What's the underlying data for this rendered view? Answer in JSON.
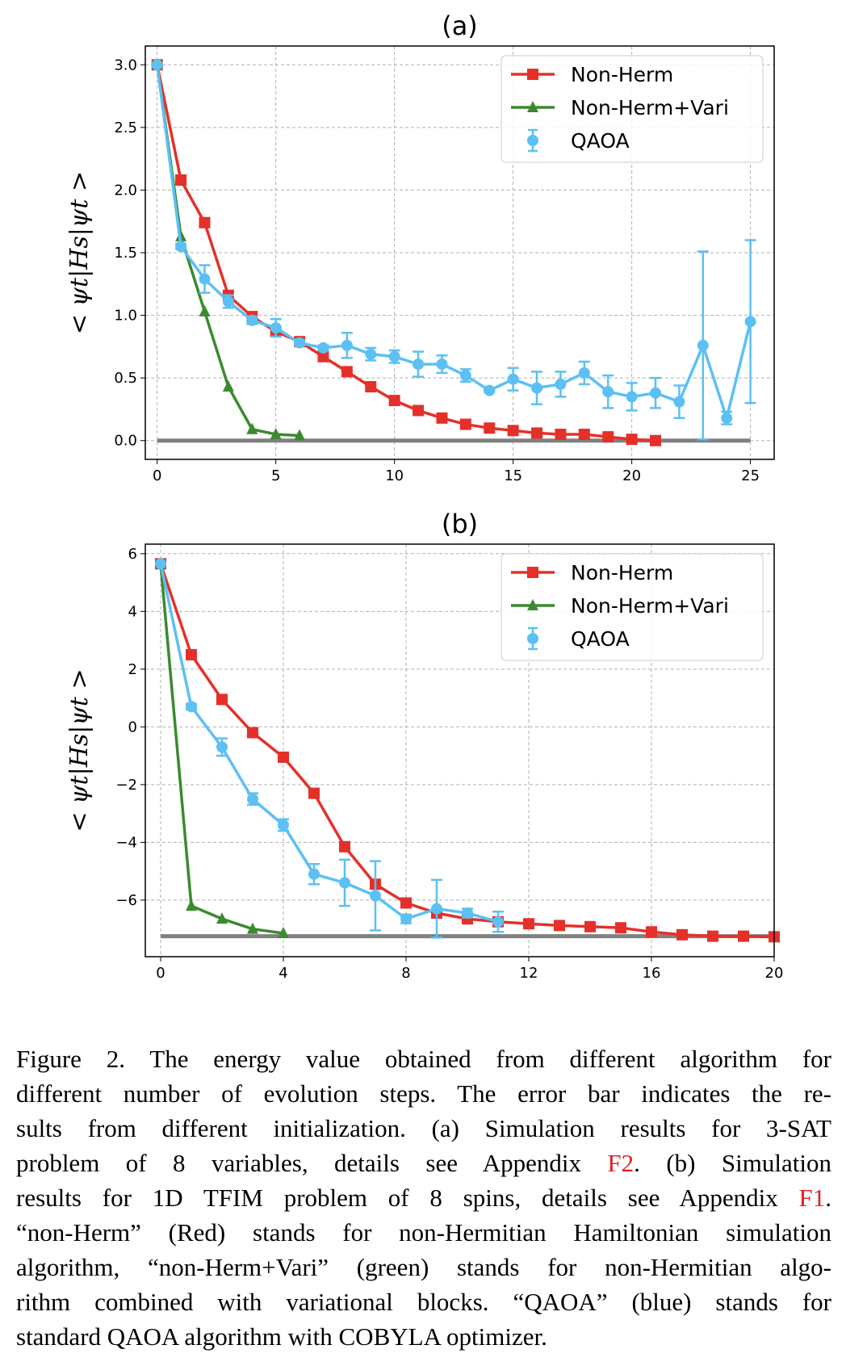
{
  "colors": {
    "non_herm": "#e5302a",
    "non_herm_vari": "#3b8a2f",
    "qaoa": "#5bc0f4",
    "ground": "#808080",
    "grid": "#b0b0b0",
    "link": "#e02020"
  },
  "chart_data": [
    {
      "type": "line",
      "title": "(a)",
      "ylabel": "< ψt|Hs|ψt >",
      "xlabel": "",
      "xlim": [
        -0.5,
        26
      ],
      "ylim": [
        -0.15,
        3.15
      ],
      "xticks": [
        0,
        5,
        10,
        15,
        20,
        25
      ],
      "yticks": [
        0.0,
        0.5,
        1.0,
        1.5,
        2.0,
        2.5,
        3.0
      ],
      "ytick_labels": [
        "0.0",
        "0.5",
        "1.0",
        "1.5",
        "2.0",
        "2.5",
        "3.0"
      ],
      "grid": true,
      "legend": "top-right",
      "series": [
        {
          "name": "Non-Herm",
          "marker": "square",
          "x": [
            0,
            1,
            2,
            3,
            4,
            5,
            6,
            7,
            8,
            9,
            10,
            11,
            12,
            13,
            14,
            15,
            16,
            17,
            18,
            19,
            20,
            21
          ],
          "y": [
            3.0,
            2.08,
            1.74,
            1.16,
            0.99,
            0.87,
            0.79,
            0.67,
            0.55,
            0.43,
            0.32,
            0.24,
            0.18,
            0.13,
            0.1,
            0.08,
            0.06,
            0.05,
            0.05,
            0.03,
            0.01,
            0.0
          ]
        },
        {
          "name": "Non-Herm+Vari",
          "marker": "triangle",
          "x": [
            0,
            1,
            2,
            3,
            4,
            5,
            6
          ],
          "y": [
            3.0,
            1.63,
            1.03,
            0.43,
            0.09,
            0.05,
            0.04
          ]
        },
        {
          "name": "QAOA",
          "marker": "circle",
          "x": [
            0,
            1,
            2,
            3,
            4,
            5,
            6,
            7,
            8,
            9,
            10,
            11,
            12,
            13,
            14,
            15,
            16,
            17,
            18,
            19,
            20,
            21,
            22,
            23,
            24,
            25
          ],
          "y": [
            3.0,
            1.55,
            1.29,
            1.11,
            0.96,
            0.9,
            0.78,
            0.74,
            0.76,
            0.69,
            0.67,
            0.61,
            0.61,
            0.52,
            0.4,
            0.49,
            0.42,
            0.45,
            0.54,
            0.39,
            0.35,
            0.38,
            0.31,
            0.76,
            0.18,
            0.95
          ],
          "yerr": [
            0,
            0.02,
            0.11,
            0.05,
            0.03,
            0.07,
            0.02,
            0.02,
            0.1,
            0.05,
            0.05,
            0.1,
            0.07,
            0.05,
            0.01,
            0.09,
            0.13,
            0.1,
            0.09,
            0.13,
            0.11,
            0.12,
            0.13,
            0.75,
            0.05,
            0.65
          ]
        }
      ],
      "reference_line": {
        "y": 0.0,
        "x": [
          0,
          25
        ]
      }
    },
    {
      "type": "line",
      "title": "(b)",
      "ylabel": "< ψt|Hs|ψt >",
      "xlabel": "",
      "xlim": [
        -0.5,
        20
      ],
      "ylim": [
        -7.96,
        6.33
      ],
      "xticks": [
        0,
        4,
        8,
        12,
        16,
        20
      ],
      "yticks": [
        -6,
        -4,
        -2,
        0,
        2,
        4,
        6
      ],
      "ytick_labels": [
        "−6",
        "−4",
        "−2",
        "0",
        "2",
        "4",
        "6"
      ],
      "grid": true,
      "legend": "top-right",
      "series": [
        {
          "name": "Non-Herm",
          "marker": "square",
          "x": [
            0,
            1,
            2,
            3,
            4,
            5,
            6,
            7,
            8,
            9,
            10,
            11,
            12,
            13,
            14,
            15,
            16,
            17,
            18,
            19,
            20
          ],
          "y": [
            5.65,
            2.5,
            0.95,
            -0.2,
            -1.05,
            -2.3,
            -4.15,
            -5.45,
            -6.1,
            -6.45,
            -6.65,
            -6.75,
            -6.82,
            -6.88,
            -6.92,
            -6.96,
            -7.1,
            -7.2,
            -7.25,
            -7.25,
            -7.27
          ]
        },
        {
          "name": "Non-Herm+Vari",
          "marker": "triangle",
          "x": [
            0,
            1,
            2,
            3,
            4
          ],
          "y": [
            5.65,
            -6.2,
            -6.65,
            -7.0,
            -7.15
          ]
        },
        {
          "name": "QAOA",
          "marker": "circle",
          "x": [
            0,
            1,
            2,
            3,
            4,
            5,
            6,
            7,
            8,
            9,
            10,
            11
          ],
          "y": [
            5.65,
            0.7,
            -0.7,
            -2.5,
            -3.4,
            -5.1,
            -5.4,
            -5.85,
            -6.65,
            -6.3,
            -6.45,
            -6.75
          ],
          "yerr": [
            0,
            0.1,
            0.3,
            0.2,
            0.2,
            0.35,
            0.8,
            1.2,
            0.15,
            1.0,
            0.15,
            0.35
          ]
        }
      ],
      "reference_line": {
        "y": -7.25,
        "x": [
          0,
          20
        ]
      }
    }
  ],
  "caption": {
    "lines": [
      [
        {
          "text": "Figure 2.  The energy value obtained from different algorithm for"
        }
      ],
      [
        {
          "text": "different number of evolution steps.  The error bar indicates the re-"
        }
      ],
      [
        {
          "text": "sults from different initialization.  (a) Simulation results for 3-SAT"
        }
      ],
      [
        {
          "text": "problem of 8 variables, details see Appendix "
        },
        {
          "text": "F2",
          "link": true
        },
        {
          "text": ".  (b) Simulation"
        }
      ],
      [
        {
          "text": "results for 1D TFIM problem of 8 spins, details see Appendix "
        },
        {
          "text": "F1",
          "link": true
        },
        {
          "text": "."
        }
      ],
      [
        {
          "text": "“non-Herm” (Red) stands for non-Hermitian Hamiltonian simulation"
        }
      ],
      [
        {
          "text": "algorithm, “non-Herm+Vari” (green) stands for non-Hermitian algo-"
        }
      ],
      [
        {
          "text": "rithm combined with variational blocks.  “QAOA” (blue) stands for"
        }
      ],
      [
        {
          "text": "standard QAOA algorithm with COBYLA optimizer."
        }
      ]
    ]
  }
}
